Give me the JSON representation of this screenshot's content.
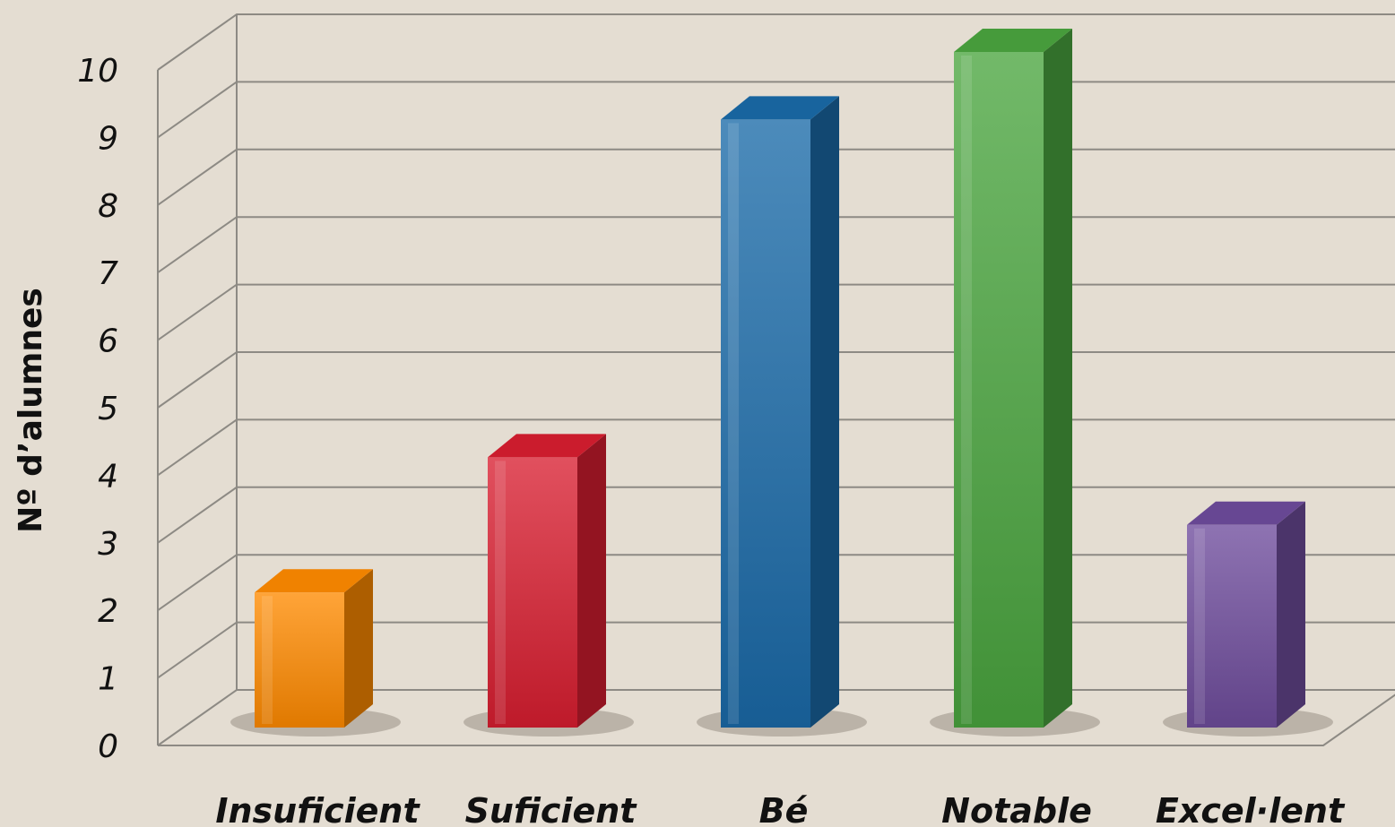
{
  "chart_data": {
    "type": "bar",
    "title": "",
    "xlabel": "",
    "ylabel": "Nº d’alumnes",
    "ylim": [
      0,
      10
    ],
    "y_ticks": [
      0,
      1,
      2,
      3,
      4,
      5,
      6,
      7,
      8,
      9,
      10
    ],
    "grid": true,
    "categories": [
      "Insuficient",
      "Suficient",
      "Bé",
      "Notable",
      "Excel·lent"
    ],
    "values": [
      2,
      4,
      9,
      10,
      3
    ],
    "colors": [
      "#ff8a00",
      "#d81e30",
      "#1a6aa8",
      "#4aa53f",
      "#6e4c9c"
    ]
  }
}
